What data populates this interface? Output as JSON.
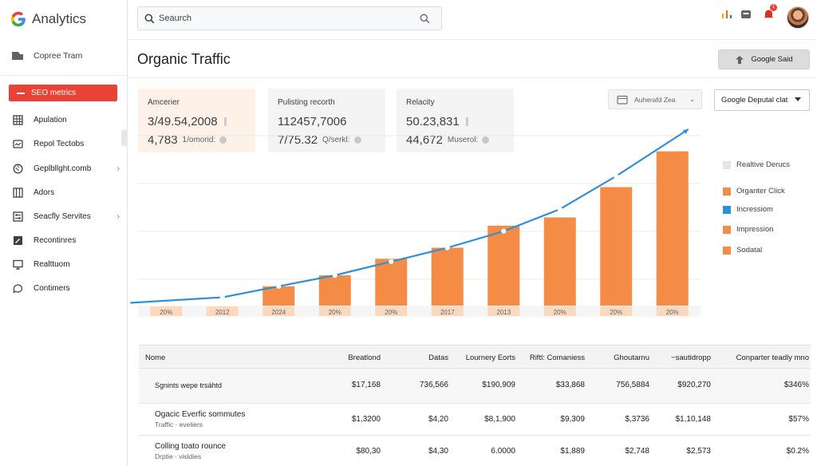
{
  "app": {
    "title": "Analytics"
  },
  "sidebar": {
    "top_item": "Copree Tram",
    "active_item": "SEO metrics",
    "items": [
      {
        "label": "Apulation",
        "icon": "grid-icon",
        "chevron": false
      },
      {
        "label": "Repol Tectobs",
        "icon": "report-icon",
        "chevron": false
      },
      {
        "label": "Geplbllght.comb",
        "icon": "globe-icon",
        "chevron": true
      },
      {
        "label": "Adors",
        "icon": "columns-icon",
        "chevron": false
      },
      {
        "label": "Seacfly Servites",
        "icon": "settings-icon",
        "chevron": true
      },
      {
        "label": "Recontinres",
        "icon": "edit-icon",
        "chevron": false
      },
      {
        "label": "Realttuom",
        "icon": "monitor-icon",
        "chevron": false
      },
      {
        "label": "Contimers",
        "icon": "chat-icon",
        "chevron": false
      }
    ]
  },
  "search": {
    "placeholder": "Seaurch"
  },
  "header": {
    "notification_count": "1"
  },
  "page": {
    "title": "Organic Traffic",
    "primary_button": "Google Said"
  },
  "cards": [
    {
      "label": "Amcerier",
      "value": "3/49.54,2008",
      "sub_value": "4,783",
      "sub_label": "1/omorid:",
      "highlight": true
    },
    {
      "label": "Pulisting recorth",
      "value": "112457,7006",
      "sub_value": "7/75.32",
      "sub_label": "Q/serkl:",
      "highlight": false
    },
    {
      "label": "Relacity",
      "value": "50.23,831",
      "sub_value": "44,672",
      "sub_label": "Muserol:",
      "highlight": false
    }
  ],
  "filters": {
    "filter_label": "Auherafd Zea",
    "select_value": "Google Deputal clat"
  },
  "legend": [
    {
      "label": "Realtive Derucs",
      "color": "#e6e6e6"
    },
    {
      "label": "Organter Click",
      "color": "#f58c45"
    },
    {
      "label": "Incressiom",
      "color": "#2f8fd8"
    },
    {
      "label": "Impression",
      "color": "#f58c45"
    },
    {
      "label": "Sodatal",
      "color": "#f58c45"
    }
  ],
  "chart_data": {
    "type": "bar",
    "categories": [
      "20%",
      "2012",
      "2024",
      "20%",
      "20%",
      "2017",
      "2013",
      "20%",
      "20%",
      "20%"
    ],
    "series": [
      {
        "name": "Organter Click",
        "type": "bar",
        "values": [
          0,
          0,
          3.5,
          5.5,
          8.5,
          10.5,
          14.5,
          16,
          21.5,
          28
        ]
      },
      {
        "name": "Incressiom",
        "type": "line",
        "values": [
          0.5,
          1.5,
          3.5,
          5.5,
          8,
          10.5,
          13.5,
          17.5,
          23.5,
          32
        ]
      }
    ],
    "line_color": "#2f8fd8",
    "bar_color": "#f58c45",
    "ylim": [
      0,
      32
    ],
    "grid": true
  },
  "table": {
    "headers": [
      "Nome",
      "Breatlond",
      "Datas",
      "Lournery Eorts",
      "Riftl: Comaniess",
      "Ghoutarnu",
      "−sautidropp",
      "Conparter teadly mno"
    ],
    "rows": [
      {
        "name": "Sgnints wepe trsáhtd",
        "sub": "",
        "cells": [
          "$17,168",
          "736,566",
          "$190,909",
          "$33,868",
          "756,5884",
          "$920,270",
          "$346%"
        ]
      },
      {
        "name": "Ogacic Everfic sommutes",
        "sub": "Traffic · eveliers",
        "cells": [
          "$1,3200",
          "$4,20",
          "$8,1,900",
          "$9,309",
          "$,3736",
          "$1,10,148",
          "$57%"
        ]
      },
      {
        "name": "Colling toato rounce",
        "sub": "Drptie · visldies",
        "cells": [
          "$80,30",
          "$4,30",
          "6.0000",
          "$1,889",
          "$2,748",
          "$2,573",
          "$0.2%"
        ]
      }
    ]
  }
}
